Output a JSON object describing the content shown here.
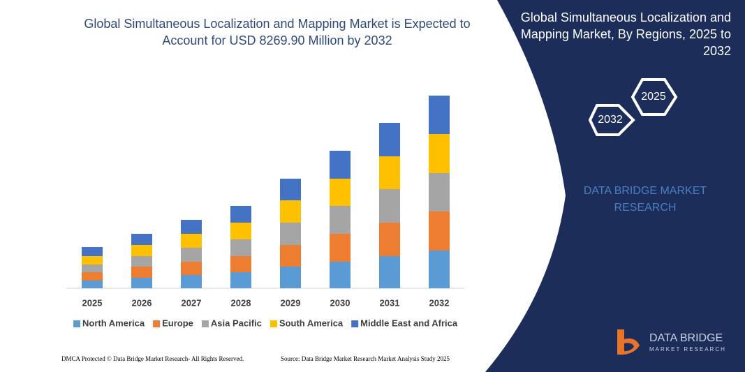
{
  "chart_data": {
    "type": "bar",
    "stacked": true,
    "title": "Global Simultaneous Localization and Mapping Market is Expected to Account for USD 8269.90 Million by 2032",
    "categories": [
      "2025",
      "2026",
      "2027",
      "2028",
      "2029",
      "2030",
      "2031",
      "2032"
    ],
    "series": [
      {
        "name": "North America",
        "color": "#5b9bd5",
        "values": [
          11,
          15,
          19,
          23,
          31,
          38,
          46,
          54
        ]
      },
      {
        "name": "Europe",
        "color": "#ed7d31",
        "values": [
          12,
          16,
          19,
          23,
          31,
          40,
          48,
          56
        ]
      },
      {
        "name": "Asia Pacific",
        "color": "#a5a5a5",
        "values": [
          11,
          15,
          20,
          24,
          32,
          40,
          48,
          55
        ]
      },
      {
        "name": "South America",
        "color": "#ffc000",
        "values": [
          12,
          16,
          20,
          24,
          32,
          39,
          47,
          56
        ]
      },
      {
        "name": "Middle East and Africa",
        "color": "#4472c4",
        "values": [
          13,
          16,
          20,
          24,
          31,
          40,
          48,
          55
        ]
      }
    ],
    "ylim": [
      0,
      280
    ]
  },
  "panel": {
    "title": "Global Simultaneous Localization and Mapping Market, By Regions, 2025 to 2032",
    "hex_labels": [
      "2025",
      "2032"
    ],
    "brand": "DATA BRIDGE MARKET RESEARCH"
  },
  "logo": {
    "name": "DATA BRIDGE",
    "tagline": "MARKET RESEARCH"
  },
  "footer": {
    "left": "DMCA Protected © Data Bridge Market Research-  All Rights Reserved.",
    "right": "Source: Data Bridge Market Research  Market Analysis Study 2025"
  }
}
